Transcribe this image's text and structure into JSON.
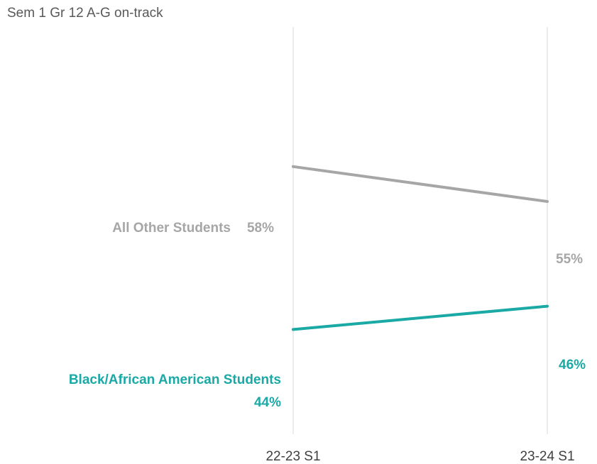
{
  "chart_data": {
    "type": "line",
    "title": "Sem 1 Gr 12 A-G on-track",
    "xlabel": "",
    "ylabel": "",
    "categories": [
      "22-23 S1",
      "23-24 S1"
    ],
    "ylim": [
      35,
      70
    ],
    "grid": "vertical",
    "series": [
      {
        "name": "All Other Students",
        "values": [
          58,
          55
        ],
        "value_labels": [
          "58%",
          "55%"
        ],
        "color": "#a6a6a6"
      },
      {
        "name": "Black/African American Students",
        "values": [
          44,
          46
        ],
        "value_labels": [
          "44%",
          "46%"
        ],
        "color": "#1ba9a5"
      }
    ]
  }
}
